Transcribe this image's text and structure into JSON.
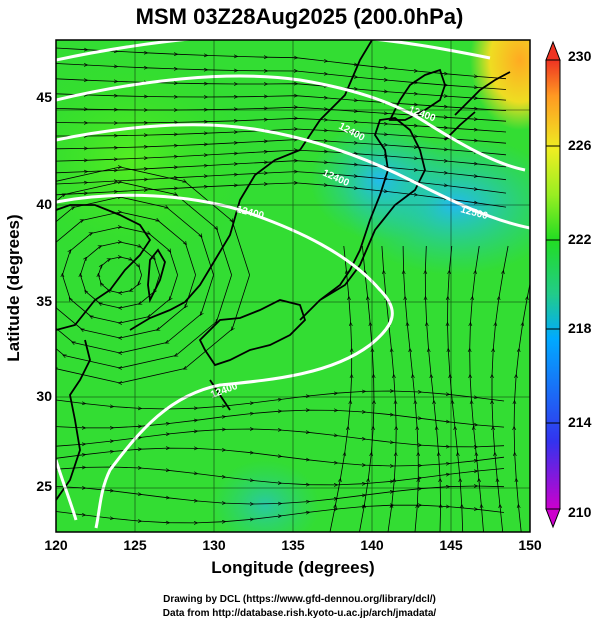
{
  "title": "MSM 03Z28Aug2025 (200.0hPa)",
  "x_axis": {
    "label": "Longitude (degrees)",
    "ticks": [
      "120",
      "125",
      "130",
      "135",
      "140",
      "145",
      "150"
    ]
  },
  "y_axis": {
    "label": "Latitude  (degrees)",
    "ticks": [
      "25",
      "30",
      "35",
      "40",
      "45"
    ]
  },
  "colorbar": {
    "ticks": [
      "230",
      "226",
      "222",
      "218",
      "214",
      "210"
    ],
    "colors": [
      "#cc00cc",
      "#3333ee",
      "#00aaff",
      "#22cc88",
      "#22dd22",
      "#99ee22",
      "#eeee22",
      "#ff9922",
      "#ee3322"
    ]
  },
  "contour_labels": [
    "12400",
    "12400",
    "12400",
    "12400",
    "12400",
    "12500"
  ],
  "credits": {
    "line1": "Drawing by DCL (https://www.gfd-dennou.org/library/dcl/)",
    "line2": "Data from http://database.rish.kyoto-u.ac.jp/arch/jmadata/"
  }
}
